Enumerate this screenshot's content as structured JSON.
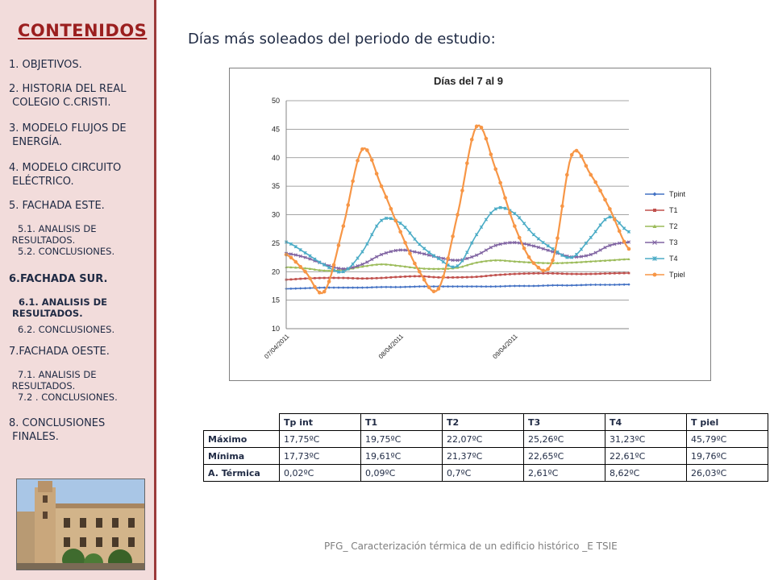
{
  "sidebar": {
    "title": "CONTENIDOS",
    "items": [
      {
        "label": "1. OBJETIVOS."
      },
      {
        "label": "2. HISTORIA DEL REAL\n COLEGIO C.CRISTI."
      },
      {
        "label": "3. MODELO FLUJOS DE\n ENERGÍA."
      },
      {
        "label": "4. MODELO CIRCUITO\n ELÉCTRICO."
      },
      {
        "label": "5. FACHADA ESTE."
      },
      {
        "label": "   5.1. ANALISIS DE\n RESULTADOS.\n   5.2. CONCLUSIONES."
      },
      {
        "label": "6.FACHADA SUR."
      },
      {
        "label": "   6.1. ANALISIS DE\n RESULTADOS."
      },
      {
        "label": "   6.2. CONCLUSIONES."
      },
      {
        "label": "7.FACHADA OESTE."
      },
      {
        "label": "   7.1. ANALISIS DE\n RESULTADOS.\n   7.2 . CONCLUSIONES."
      },
      {
        "label": "8. CONCLUSIONES\n FINALES."
      }
    ]
  },
  "slide": {
    "title": "Días más soleados del periodo de estudio:",
    "footer": "PFG_ Caracterización térmica de un edificio histórico _E TSIE"
  },
  "chart_data": {
    "type": "line",
    "title": "Días del 7 al 9",
    "ylim": [
      10,
      50
    ],
    "yticks": [
      "10",
      "15",
      "20",
      "25",
      "30",
      "35",
      "40",
      "45",
      "50"
    ],
    "x_tick_labels": [
      "07/04/2011",
      "08/04/2011",
      "09/04/2011"
    ],
    "legend_position": "right",
    "x_index": [
      0,
      4,
      8,
      12,
      16,
      20,
      24,
      28,
      32,
      36,
      40,
      44,
      48,
      52,
      56,
      60,
      64,
      68,
      72
    ],
    "series": [
      {
        "name": "Tpint",
        "color": "#4472c4",
        "marker": "diamond",
        "values": [
          17.0,
          17.1,
          17.2,
          17.2,
          17.2,
          17.3,
          17.3,
          17.4,
          17.4,
          17.4,
          17.4,
          17.4,
          17.5,
          17.5,
          17.6,
          17.6,
          17.7,
          17.7,
          17.75
        ]
      },
      {
        "name": "T1",
        "color": "#c0504d",
        "marker": "square",
        "values": [
          18.6,
          18.8,
          18.9,
          18.9,
          18.8,
          18.9,
          19.1,
          19.2,
          19.0,
          19.0,
          19.1,
          19.4,
          19.6,
          19.7,
          19.7,
          19.6,
          19.6,
          19.7,
          19.75
        ]
      },
      {
        "name": "T2",
        "color": "#9bbb59",
        "marker": "triangle",
        "values": [
          20.8,
          20.6,
          20.2,
          20.3,
          20.9,
          21.3,
          21.0,
          20.6,
          20.5,
          20.7,
          21.6,
          22.0,
          21.8,
          21.6,
          21.5,
          21.6,
          21.8,
          22.0,
          22.2
        ]
      },
      {
        "name": "T3",
        "color": "#8064a2",
        "marker": "x",
        "values": [
          23.2,
          22.5,
          21.3,
          20.5,
          21.3,
          23.0,
          23.8,
          23.3,
          22.5,
          22.0,
          22.9,
          24.6,
          25.1,
          24.5,
          23.5,
          22.6,
          23.0,
          24.6,
          25.2
        ]
      },
      {
        "name": "T4",
        "color": "#4bacc6",
        "marker": "asterisk",
        "values": [
          25.2,
          23.3,
          21.2,
          20.0,
          23.5,
          29.0,
          28.5,
          24.8,
          22.3,
          21.0,
          26.5,
          31.0,
          30.2,
          26.5,
          24.0,
          22.5,
          26.0,
          29.6,
          27.0
        ]
      },
      {
        "name": "Tpiel",
        "color": "#f79646",
        "marker": "circle",
        "values": [
          23.0,
          20.0,
          16.5,
          28.0,
          41.5,
          35.0,
          27.0,
          20.0,
          17.0,
          30.0,
          45.5,
          38.0,
          28.0,
          21.5,
          22.0,
          40.5,
          37.0,
          31.0,
          24.0
        ]
      }
    ]
  },
  "table": {
    "headers": [
      "Tp int",
      "T1",
      "T2",
      "T3",
      "T4",
      "T piel"
    ],
    "rows": [
      {
        "label": "Máximo",
        "values": [
          "17,75ºC",
          "19,75ºC",
          "22,07ºC",
          "25,26ºC",
          "31,23ºC",
          "45,79ºC"
        ]
      },
      {
        "label": "Mínima",
        "values": [
          "17,73ºC",
          "19,61ºC",
          "21,37ºC",
          "22,65ºC",
          "22,61ºC",
          "19,76ºC"
        ]
      },
      {
        "label": "A. Térmica",
        "values": [
          "0,02ºC",
          "0,09ºC",
          "0,7ºC",
          "2,61ºC",
          "8,62ºC",
          "26,03ºC"
        ]
      }
    ]
  }
}
